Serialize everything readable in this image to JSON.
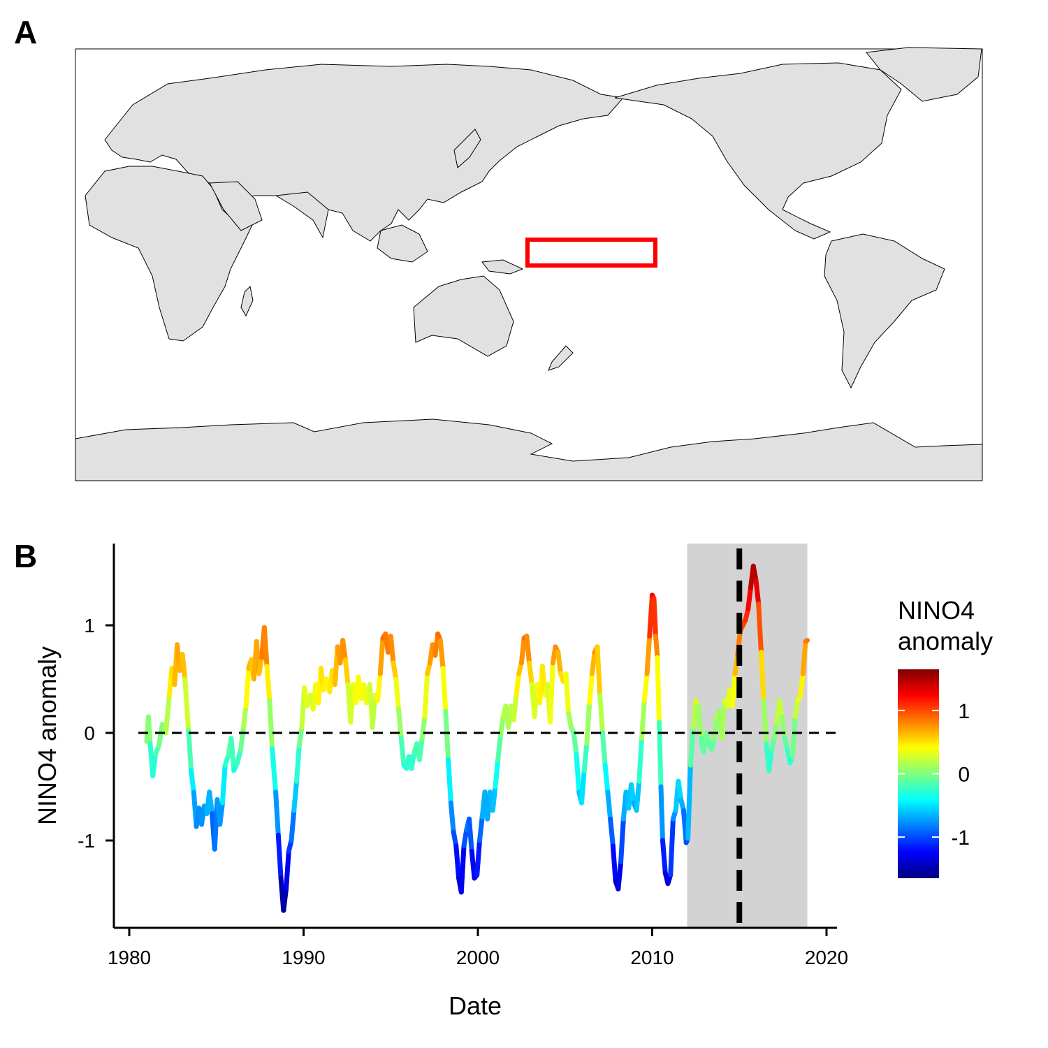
{
  "panel_a": {
    "label": "A",
    "land_color": "#e1e1e1",
    "region_box_color": "#ff0000"
  },
  "panel_b": {
    "label": "B"
  },
  "chart_data": {
    "type": "line",
    "title": "",
    "xlabel": "Date",
    "ylabel": "NINO4 anomaly",
    "xlim": [
      1979.4,
      2020.8
    ],
    "ylim": [
      -1.8,
      1.8
    ],
    "xticks": [
      1980,
      1990,
      2000,
      2010,
      2020
    ],
    "xtick_labels": [
      "1980",
      "1990",
      "2000",
      "2010",
      "2020"
    ],
    "yticks": [
      -1,
      0,
      1
    ],
    "ytick_labels": [
      "-1",
      "0",
      "1"
    ],
    "reference_line": {
      "y": 0,
      "style": "dashed"
    },
    "event_line": {
      "x": 2015.0,
      "style": "dashed"
    },
    "shaded_period": {
      "x": [
        2012.0,
        2018.9
      ],
      "color": "#d3d3d3"
    },
    "color_scale": {
      "title": [
        "NINO4",
        "anomaly"
      ],
      "range": [
        -1.65,
        1.65
      ],
      "ticks": [
        -1,
        0,
        1
      ],
      "tick_labels": [
        "-1",
        "0",
        "1"
      ],
      "colors": [
        "#00007f",
        "#0000ff",
        "#007fff",
        "#00ffff",
        "#7fff7f",
        "#ffff00",
        "#ff7f00",
        "#ff0000",
        "#7f0000"
      ]
    },
    "series": [
      {
        "points": [
          [
            1981.0,
            -0.08
          ],
          [
            1981.1,
            0.15
          ],
          [
            1981.2,
            -0.1
          ],
          [
            1981.35,
            -0.4
          ],
          [
            1981.5,
            -0.2
          ],
          [
            1981.7,
            -0.12
          ],
          [
            1981.9,
            0.08
          ],
          [
            1982.1,
            0.0
          ],
          [
            1982.3,
            0.35
          ],
          [
            1982.45,
            0.6
          ],
          [
            1982.6,
            0.45
          ],
          [
            1982.75,
            0.82
          ],
          [
            1982.9,
            0.58
          ],
          [
            1983.05,
            0.73
          ],
          [
            1983.2,
            0.5
          ],
          [
            1983.4,
            0.02
          ],
          [
            1983.55,
            -0.35
          ],
          [
            1983.7,
            -0.55
          ],
          [
            1983.85,
            -0.87
          ],
          [
            1984.0,
            -0.7
          ],
          [
            1984.15,
            -0.85
          ],
          [
            1984.3,
            -0.68
          ],
          [
            1984.45,
            -0.75
          ],
          [
            1984.6,
            -0.55
          ],
          [
            1984.75,
            -0.75
          ],
          [
            1984.9,
            -1.08
          ],
          [
            1985.05,
            -0.62
          ],
          [
            1985.2,
            -0.85
          ],
          [
            1985.35,
            -0.65
          ],
          [
            1985.5,
            -0.3
          ],
          [
            1985.7,
            -0.2
          ],
          [
            1985.85,
            -0.05
          ],
          [
            1986.0,
            -0.35
          ],
          [
            1986.2,
            -0.28
          ],
          [
            1986.4,
            -0.15
          ],
          [
            1986.55,
            0.05
          ],
          [
            1986.7,
            0.25
          ],
          [
            1986.85,
            0.6
          ],
          [
            1987.0,
            0.68
          ],
          [
            1987.15,
            0.5
          ],
          [
            1987.3,
            0.85
          ],
          [
            1987.45,
            0.55
          ],
          [
            1987.6,
            0.7
          ],
          [
            1987.75,
            0.98
          ],
          [
            1987.9,
            0.62
          ],
          [
            1988.05,
            0.3
          ],
          [
            1988.2,
            -0.15
          ],
          [
            1988.4,
            -0.55
          ],
          [
            1988.55,
            -0.95
          ],
          [
            1988.7,
            -1.35
          ],
          [
            1988.85,
            -1.65
          ],
          [
            1989.0,
            -1.45
          ],
          [
            1989.15,
            -1.1
          ],
          [
            1989.3,
            -1.0
          ],
          [
            1989.45,
            -0.72
          ],
          [
            1989.6,
            -0.45
          ],
          [
            1989.75,
            -0.12
          ],
          [
            1989.9,
            0.05
          ],
          [
            1990.05,
            0.42
          ],
          [
            1990.2,
            0.25
          ],
          [
            1990.4,
            0.35
          ],
          [
            1990.55,
            0.22
          ],
          [
            1990.7,
            0.45
          ],
          [
            1990.85,
            0.28
          ],
          [
            1991.0,
            0.6
          ],
          [
            1991.15,
            0.4
          ],
          [
            1991.3,
            0.5
          ],
          [
            1991.5,
            0.38
          ],
          [
            1991.65,
            0.58
          ],
          [
            1991.8,
            0.45
          ],
          [
            1991.95,
            0.8
          ],
          [
            1992.1,
            0.65
          ],
          [
            1992.25,
            0.86
          ],
          [
            1992.4,
            0.68
          ],
          [
            1992.55,
            0.45
          ],
          [
            1992.7,
            0.1
          ],
          [
            1992.85,
            0.45
          ],
          [
            1993.0,
            0.28
          ],
          [
            1993.15,
            0.52
          ],
          [
            1993.3,
            0.32
          ],
          [
            1993.45,
            0.45
          ],
          [
            1993.6,
            0.28
          ],
          [
            1993.8,
            0.45
          ],
          [
            1993.95,
            0.05
          ],
          [
            1994.1,
            0.35
          ],
          [
            1994.25,
            0.3
          ],
          [
            1994.4,
            0.55
          ],
          [
            1994.55,
            0.88
          ],
          [
            1994.7,
            0.92
          ],
          [
            1994.85,
            0.75
          ],
          [
            1995.0,
            0.9
          ],
          [
            1995.15,
            0.65
          ],
          [
            1995.3,
            0.5
          ],
          [
            1995.45,
            0.22
          ],
          [
            1995.6,
            -0.05
          ],
          [
            1995.75,
            -0.3
          ],
          [
            1995.9,
            -0.33
          ],
          [
            1996.05,
            -0.22
          ],
          [
            1996.2,
            -0.33
          ],
          [
            1996.35,
            -0.18
          ],
          [
            1996.5,
            -0.1
          ],
          [
            1996.65,
            -0.25
          ],
          [
            1996.8,
            -0.05
          ],
          [
            1996.95,
            0.15
          ],
          [
            1997.1,
            0.55
          ],
          [
            1997.25,
            0.65
          ],
          [
            1997.4,
            0.82
          ],
          [
            1997.55,
            0.72
          ],
          [
            1997.7,
            0.92
          ],
          [
            1997.85,
            0.86
          ],
          [
            1998.0,
            0.6
          ],
          [
            1998.15,
            0.2
          ],
          [
            1998.3,
            -0.25
          ],
          [
            1998.45,
            -0.65
          ],
          [
            1998.6,
            -0.92
          ],
          [
            1998.75,
            -1.05
          ],
          [
            1998.9,
            -1.35
          ],
          [
            1999.05,
            -1.48
          ],
          [
            1999.2,
            -1.05
          ],
          [
            1999.35,
            -0.9
          ],
          [
            1999.5,
            -0.8
          ],
          [
            1999.65,
            -1.1
          ],
          [
            1999.8,
            -1.35
          ],
          [
            1999.95,
            -1.32
          ],
          [
            2000.1,
            -1.0
          ],
          [
            2000.25,
            -0.78
          ],
          [
            2000.4,
            -0.55
          ],
          [
            2000.55,
            -0.8
          ],
          [
            2000.7,
            -0.55
          ],
          [
            2000.85,
            -0.72
          ],
          [
            2001.0,
            -0.5
          ],
          [
            2001.15,
            -0.25
          ],
          [
            2001.3,
            -0.02
          ],
          [
            2001.45,
            0.15
          ],
          [
            2001.6,
            0.25
          ],
          [
            2001.75,
            0.05
          ],
          [
            2001.9,
            0.25
          ],
          [
            2002.05,
            0.12
          ],
          [
            2002.2,
            0.35
          ],
          [
            2002.35,
            0.55
          ],
          [
            2002.5,
            0.65
          ],
          [
            2002.65,
            0.88
          ],
          [
            2002.8,
            0.9
          ],
          [
            2002.95,
            0.65
          ],
          [
            2003.1,
            0.45
          ],
          [
            2003.25,
            0.15
          ],
          [
            2003.4,
            0.45
          ],
          [
            2003.55,
            0.28
          ],
          [
            2003.7,
            0.62
          ],
          [
            2003.85,
            0.35
          ],
          [
            2004.0,
            0.45
          ],
          [
            2004.15,
            0.1
          ],
          [
            2004.3,
            0.65
          ],
          [
            2004.45,
            0.8
          ],
          [
            2004.6,
            0.75
          ],
          [
            2004.75,
            0.55
          ],
          [
            2004.9,
            0.48
          ],
          [
            2005.05,
            0.55
          ],
          [
            2005.2,
            0.18
          ],
          [
            2005.35,
            0.05
          ],
          [
            2005.5,
            0.0
          ],
          [
            2005.65,
            -0.2
          ],
          [
            2005.8,
            -0.55
          ],
          [
            2005.95,
            -0.65
          ],
          [
            2006.1,
            -0.35
          ],
          [
            2006.25,
            -0.1
          ],
          [
            2006.4,
            0.28
          ],
          [
            2006.55,
            0.55
          ],
          [
            2006.7,
            0.75
          ],
          [
            2006.85,
            0.8
          ],
          [
            2007.0,
            0.35
          ],
          [
            2007.15,
            0.0
          ],
          [
            2007.3,
            -0.3
          ],
          [
            2007.45,
            -0.55
          ],
          [
            2007.6,
            -0.8
          ],
          [
            2007.75,
            -1.05
          ],
          [
            2007.9,
            -1.38
          ],
          [
            2008.05,
            -1.45
          ],
          [
            2008.2,
            -1.2
          ],
          [
            2008.35,
            -0.8
          ],
          [
            2008.5,
            -0.55
          ],
          [
            2008.65,
            -0.7
          ],
          [
            2008.8,
            -0.48
          ],
          [
            2008.95,
            -0.65
          ],
          [
            2009.1,
            -0.72
          ],
          [
            2009.25,
            -0.45
          ],
          [
            2009.4,
            -0.05
          ],
          [
            2009.55,
            0.3
          ],
          [
            2009.7,
            0.55
          ],
          [
            2009.85,
            0.9
          ],
          [
            2010.0,
            1.28
          ],
          [
            2010.1,
            1.25
          ],
          [
            2010.2,
            0.9
          ],
          [
            2010.3,
            0.7
          ],
          [
            2010.4,
            0.1
          ],
          [
            2010.5,
            -0.5
          ],
          [
            2010.6,
            -1.0
          ],
          [
            2010.75,
            -1.3
          ],
          [
            2010.9,
            -1.4
          ],
          [
            2011.05,
            -1.32
          ],
          [
            2011.2,
            -0.8
          ],
          [
            2011.35,
            -0.72
          ],
          [
            2011.5,
            -0.45
          ],
          [
            2011.65,
            -0.62
          ],
          [
            2011.8,
            -0.72
          ],
          [
            2011.95,
            -1.02
          ],
          [
            2012.05,
            -0.98
          ],
          [
            2012.2,
            -0.3
          ],
          [
            2012.35,
            0.05
          ],
          [
            2012.5,
            0.3
          ],
          [
            2012.65,
            0.25
          ],
          [
            2012.8,
            -0.05
          ],
          [
            2012.95,
            -0.18
          ],
          [
            2013.1,
            0.0
          ],
          [
            2013.25,
            -0.1
          ],
          [
            2013.4,
            -0.15
          ],
          [
            2013.55,
            -0.05
          ],
          [
            2013.7,
            0.15
          ],
          [
            2013.85,
            0.2
          ],
          [
            2014.0,
            -0.05
          ],
          [
            2014.15,
            0.3
          ],
          [
            2014.3,
            0.25
          ],
          [
            2014.45,
            0.4
          ],
          [
            2014.6,
            0.25
          ],
          [
            2014.75,
            0.55
          ],
          [
            2014.9,
            0.72
          ],
          [
            2015.05,
            0.95
          ],
          [
            2015.2,
            1.0
          ],
          [
            2015.35,
            1.05
          ],
          [
            2015.5,
            1.15
          ],
          [
            2015.65,
            1.35
          ],
          [
            2015.8,
            1.55
          ],
          [
            2015.95,
            1.42
          ],
          [
            2016.1,
            1.2
          ],
          [
            2016.25,
            0.75
          ],
          [
            2016.4,
            0.3
          ],
          [
            2016.55,
            -0.1
          ],
          [
            2016.7,
            -0.35
          ],
          [
            2016.85,
            -0.15
          ],
          [
            2017.0,
            -0.05
          ],
          [
            2017.15,
            0.1
          ],
          [
            2017.3,
            0.3
          ],
          [
            2017.45,
            0.15
          ],
          [
            2017.6,
            -0.05
          ],
          [
            2017.75,
            -0.15
          ],
          [
            2017.9,
            -0.28
          ],
          [
            2018.05,
            -0.22
          ],
          [
            2018.2,
            0.15
          ],
          [
            2018.35,
            0.3
          ],
          [
            2018.5,
            0.35
          ],
          [
            2018.65,
            0.55
          ],
          [
            2018.8,
            0.85
          ],
          [
            2018.9,
            0.86
          ]
        ]
      }
    ]
  }
}
